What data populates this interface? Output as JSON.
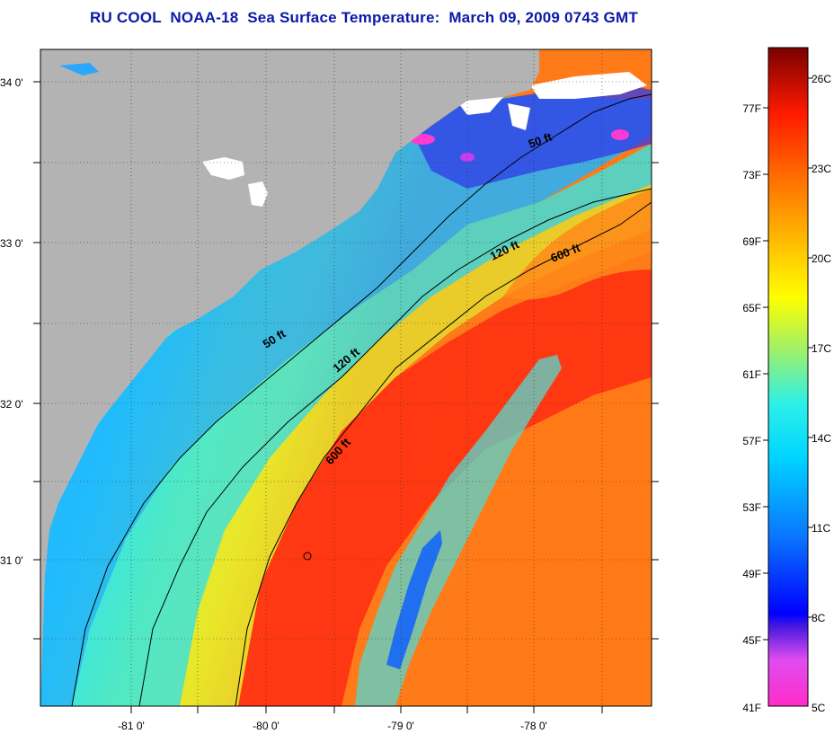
{
  "title": "RU COOL  NOAA-18  Sea Surface Temperature:  March 09, 2009 0743 GMT",
  "lat_labels": [
    "34 0'",
    "33 0'",
    "32 0'",
    "31 0'"
  ],
  "lon_labels": [
    "-81 0'",
    "-80 0'",
    "-79 0'",
    "-78 0'"
  ],
  "contour_labels": {
    "c50_north": "50 ft",
    "c50_south": "50 ft",
    "c120_north": "120 ft",
    "c120_south": "120 ft",
    "c600_north": "600 ft",
    "c600_south": "600 ft"
  },
  "colorbar": {
    "fahrenheit": [
      "77F",
      "73F",
      "69F",
      "65F",
      "61F",
      "57F",
      "53F",
      "49F",
      "45F",
      "41F"
    ],
    "celsius": [
      "26C",
      "23C",
      "20C",
      "17C",
      "14C",
      "11C",
      "8C",
      "5C"
    ]
  },
  "colors": {
    "land": "#b3b3b3",
    "title": "#0a1aa8",
    "warm": "#ff3a10",
    "cool": "#22aaff"
  }
}
